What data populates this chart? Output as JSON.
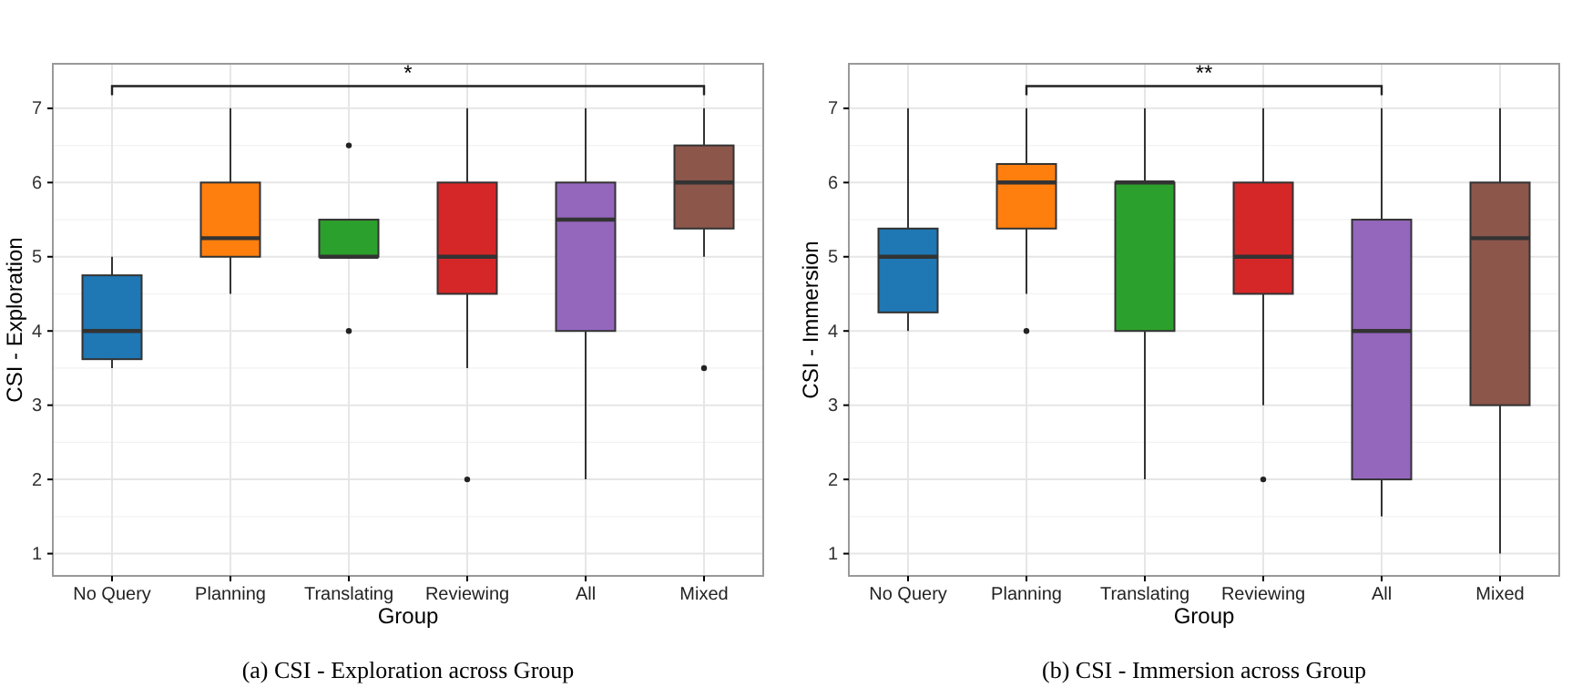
{
  "chart_data": [
    {
      "type": "box",
      "title": "(a) CSI - Exploration across Group",
      "xlabel": "Group",
      "ylabel": "CSI - Exploration",
      "categories": [
        "No Query",
        "Planning",
        "Translating",
        "Reviewing",
        "All",
        "Mixed"
      ],
      "colors": [
        "#1f77b4",
        "#ff7f0e",
        "#2ca02c",
        "#d62728",
        "#9467bd",
        "#8c564b"
      ],
      "boxes": [
        {
          "low": 3.5,
          "q1": 3.62,
          "median": 4,
          "q3": 4.75,
          "high": 5
        },
        {
          "low": 4.5,
          "q1": 5,
          "median": 5.25,
          "q3": 6,
          "high": 7
        },
        {
          "low": 5,
          "q1": 5,
          "median": 5,
          "q3": 5.5,
          "high": 5.5,
          "outliers": [
            6.5,
            4
          ]
        },
        {
          "low": 3.5,
          "q1": 4.5,
          "median": 5,
          "q3": 6,
          "high": 7,
          "outliers": [
            2
          ]
        },
        {
          "low": 2,
          "q1": 4,
          "median": 5.5,
          "q3": 6,
          "high": 7
        },
        {
          "low": 5,
          "q1": 5.38,
          "median": 6,
          "q3": 6.5,
          "high": 7,
          "outliers": [
            3.5
          ]
        }
      ],
      "ylim": [
        0.7,
        7.6
      ],
      "yticks": [
        1,
        2,
        3,
        4,
        5,
        6,
        7
      ],
      "grid": true,
      "annotations": [
        "*"
      ]
    },
    {
      "type": "box",
      "title": "(b) CSI - Immersion across Group",
      "xlabel": "Group",
      "ylabel": "CSI - Immersion",
      "categories": [
        "No Query",
        "Planning",
        "Translating",
        "Reviewing",
        "All",
        "Mixed"
      ],
      "colors": [
        "#1f77b4",
        "#ff7f0e",
        "#2ca02c",
        "#d62728",
        "#9467bd",
        "#8c564b"
      ],
      "boxes": [
        {
          "low": 4,
          "q1": 4.25,
          "median": 5,
          "q3": 5.38,
          "high": 7
        },
        {
          "low": 4.5,
          "q1": 5.38,
          "median": 6,
          "q3": 6.25,
          "high": 7,
          "outliers": [
            4
          ]
        },
        {
          "low": 2,
          "q1": 4,
          "median": 6,
          "q3": 6,
          "high": 7
        },
        {
          "low": 3,
          "q1": 4.5,
          "median": 5,
          "q3": 6,
          "high": 7,
          "outliers": [
            2
          ]
        },
        {
          "low": 1.5,
          "q1": 2,
          "median": 4,
          "q3": 5.5,
          "high": 7
        },
        {
          "low": 1,
          "q1": 3,
          "median": 5.25,
          "q3": 6,
          "high": 7
        }
      ],
      "ylim": [
        0.7,
        7.6
      ],
      "yticks": [
        1,
        2,
        3,
        4,
        5,
        6,
        7
      ],
      "grid": true,
      "annotations": [
        "**"
      ]
    }
  ]
}
